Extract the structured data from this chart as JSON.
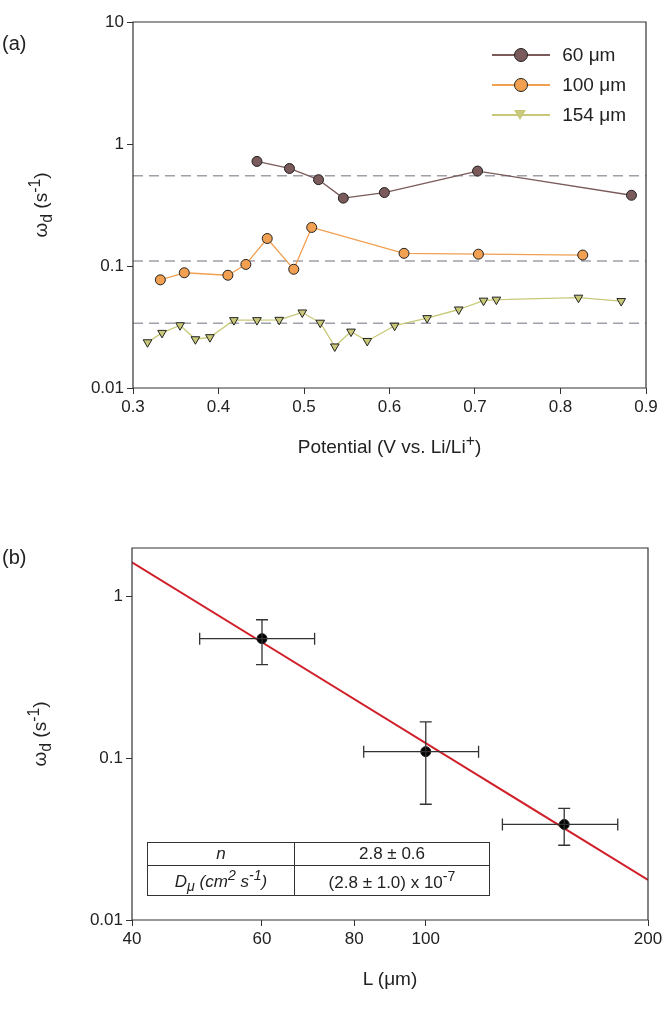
{
  "chart_data": [
    {
      "type": "line",
      "title": "(a)",
      "xlabel": "Potential (V vs. Li/Li$^{+}$)",
      "ylabel": "ω$_{d}$ (s$^{-1}$)",
      "log": "y",
      "xlim": [
        0.3,
        0.9
      ],
      "xticks": [
        0.3,
        0.4,
        0.5,
        0.6,
        0.7,
        0.8,
        0.9
      ],
      "ylim": [
        0.01,
        10
      ],
      "yticks": [
        0.01,
        0.1,
        1,
        10
      ],
      "grid": false,
      "legend": "top right",
      "line_style": "solid",
      "series": [
        {
          "name": "60 μm",
          "color": "#7a5a5a",
          "marker": "circle",
          "x": [
            0.445,
            0.483,
            0.517,
            0.546,
            0.594,
            0.703,
            0.883
          ],
          "values": [
            0.72,
            0.63,
            0.51,
            0.36,
            0.4,
            0.6,
            0.38
          ]
        },
        {
          "name": "100 μm",
          "color": "#f0a050",
          "marker": "circle",
          "x": [
            0.332,
            0.36,
            0.411,
            0.432,
            0.457,
            0.488,
            0.509,
            0.617,
            0.704,
            0.826
          ],
          "values": [
            0.077,
            0.088,
            0.084,
            0.103,
            0.168,
            0.094,
            0.207,
            0.127,
            0.125,
            0.123
          ]
        },
        {
          "name": "154 μm",
          "color": "#c8c878",
          "marker": "triangle",
          "x": [
            0.317,
            0.334,
            0.355,
            0.373,
            0.39,
            0.418,
            0.445,
            0.471,
            0.498,
            0.519,
            0.536,
            0.555,
            0.574,
            0.606,
            0.644,
            0.681,
            0.71,
            0.725,
            0.821,
            0.871
          ],
          "values": [
            0.0237,
            0.0283,
            0.0327,
            0.0251,
            0.0261,
            0.036,
            0.036,
            0.0362,
            0.0416,
            0.0343,
            0.0219,
            0.029,
            0.0243,
            0.0324,
            0.0374,
            0.044,
            0.052,
            0.053,
            0.055,
            0.0516
          ]
        }
      ],
      "ref_lines": [
        {
          "axis": "y",
          "value": 0.55,
          "color": "#a0a0a8",
          "line_style": "dashed"
        },
        {
          "axis": "y",
          "value": 0.11,
          "color": "#a0a0a8",
          "line_style": "dashed"
        },
        {
          "axis": "y",
          "value": 0.034,
          "color": "#a0a0a8",
          "line_style": "dashed"
        }
      ]
    },
    {
      "type": "scatter",
      "title": "(b)",
      "xlabel": "L (μm)",
      "ylabel": "ω$_{d}$ (s$^{-1}$)",
      "log": "xy",
      "xlim": [
        40,
        200
      ],
      "xticks": [
        40,
        60,
        80,
        100,
        200
      ],
      "ylim": [
        0.01,
        2
      ],
      "yticks": [
        0.01,
        0.1,
        1
      ],
      "grid": false,
      "legend": false,
      "annotations": [
        "n",
        "2.8 ± 0.6",
        "D$_{μ}$ (cm$^{2}$ s$^{-1}$)",
        "(2.8 ± 1.0) x 10$^{-7}$"
      ],
      "series": [
        {
          "color": "#000000",
          "marker": "circle",
          "x": [
            60,
            100,
            154
          ],
          "values": [
            0.55,
            0.11,
            0.039
          ],
          "errors": [
            [
              0.38,
              0.72
            ],
            [
              0.052,
              0.168
            ],
            [
              0.029,
              0.049
            ]
          ],
          "xerrors": [
            [
              49.4,
              70.7
            ],
            [
              82.4,
              117.9
            ],
            [
              127,
              182
            ]
          ]
        },
        {
          "type": "line",
          "color": "#d0202a",
          "marker": "none",
          "x": [
            40,
            200
          ],
          "values": [
            1.63,
            0.0177
          ]
        }
      ]
    }
  ]
}
